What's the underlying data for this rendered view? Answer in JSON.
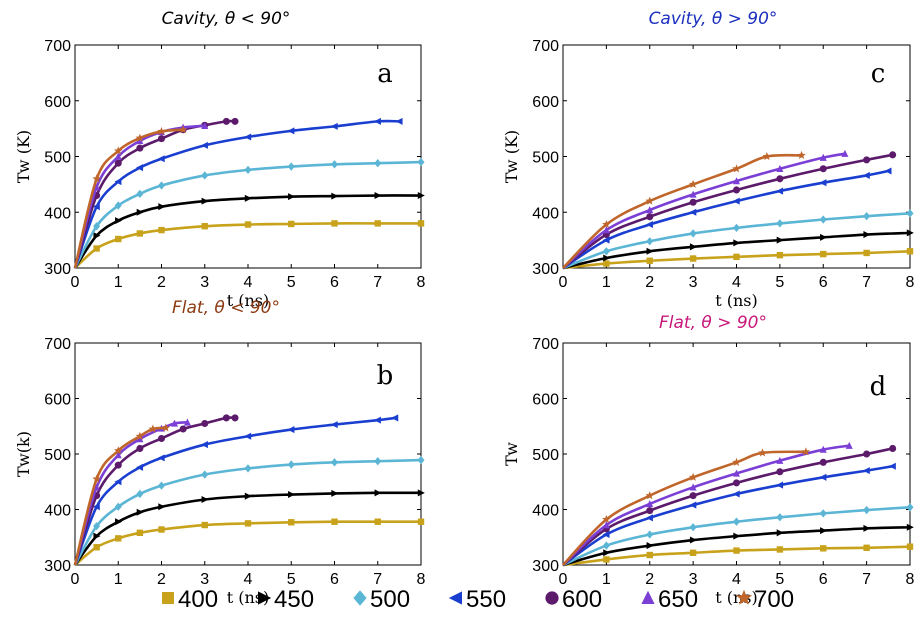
{
  "chart_data": [
    {
      "type": "line",
      "panel": "a",
      "title": "Cavity, θ < 90°",
      "title_color": "#000000",
      "xlabel": "t (ns)",
      "ylabel": "Tw (K)",
      "xlim": [
        0,
        8
      ],
      "ylim": [
        300,
        700
      ],
      "xticks": [
        "0",
        "1",
        "2",
        "3",
        "4",
        "5",
        "6",
        "7",
        "8"
      ],
      "yticks": [
        "300",
        "400",
        "500",
        "600",
        "700"
      ],
      "series": [
        {
          "name": "400",
          "color": "#c8a21a",
          "marker": "square",
          "x": [
            0,
            0.5,
            1,
            1.5,
            2,
            3,
            4,
            5,
            6,
            7,
            8
          ],
          "y": [
            300,
            335,
            352,
            362,
            368,
            375,
            378,
            379,
            380,
            380,
            380
          ]
        },
        {
          "name": "450",
          "color": "#000000",
          "marker": "triangle-right",
          "x": [
            0,
            0.5,
            1,
            1.5,
            2,
            3,
            4,
            5,
            6,
            7,
            8
          ],
          "y": [
            300,
            358,
            385,
            400,
            410,
            420,
            425,
            428,
            429,
            430,
            430
          ]
        },
        {
          "name": "500",
          "color": "#5bb5d5",
          "marker": "diamond",
          "x": [
            0,
            0.5,
            1,
            1.5,
            2,
            3,
            4,
            5,
            6,
            7,
            8
          ],
          "y": [
            300,
            375,
            412,
            433,
            448,
            466,
            476,
            482,
            486,
            488,
            490
          ]
        },
        {
          "name": "550",
          "color": "#1a3fd0",
          "marker": "triangle-left",
          "x": [
            0,
            0.5,
            1,
            1.5,
            2,
            3,
            4,
            5,
            6,
            7,
            7.5
          ],
          "y": [
            300,
            410,
            455,
            480,
            496,
            520,
            535,
            546,
            554,
            563,
            563
          ]
        },
        {
          "name": "600",
          "color": "#5c1a6b",
          "marker": "circle",
          "x": [
            0,
            0.5,
            1,
            1.5,
            2,
            2.5,
            3,
            3.5,
            3.7
          ],
          "y": [
            300,
            430,
            488,
            515,
            532,
            548,
            556,
            563,
            563
          ]
        },
        {
          "name": "650",
          "color": "#7b3fd6",
          "marker": "triangle-up",
          "x": [
            0,
            0.5,
            1,
            1.5,
            2,
            2.5,
            3
          ],
          "y": [
            300,
            445,
            500,
            528,
            544,
            552,
            555
          ]
        },
        {
          "name": "700",
          "color": "#c0662b",
          "marker": "star",
          "x": [
            0,
            0.5,
            1,
            1.5,
            2,
            2.5
          ],
          "y": [
            300,
            460,
            510,
            533,
            545,
            548
          ]
        }
      ]
    },
    {
      "type": "line",
      "panel": "b",
      "title": "Flat, θ < 90°",
      "title_color": "#8b3a12",
      "xlabel": "t (ns)",
      "ylabel": "Tw(k)",
      "xlim": [
        0,
        8
      ],
      "ylim": [
        300,
        700
      ],
      "xticks": [
        "0",
        "1",
        "2",
        "3",
        "4",
        "5",
        "6",
        "7",
        "8"
      ],
      "yticks": [
        "300",
        "400",
        "500",
        "600",
        "700"
      ],
      "series": [
        {
          "name": "400",
          "color": "#c8a21a",
          "marker": "square",
          "x": [
            0,
            0.5,
            1,
            1.5,
            2,
            3,
            4,
            5,
            6,
            7,
            8
          ],
          "y": [
            300,
            332,
            348,
            358,
            364,
            372,
            375,
            377,
            378,
            378,
            378
          ]
        },
        {
          "name": "450",
          "color": "#000000",
          "marker": "triangle-right",
          "x": [
            0,
            0.5,
            1,
            1.5,
            2,
            3,
            4,
            5,
            6,
            7,
            8
          ],
          "y": [
            300,
            352,
            378,
            395,
            405,
            418,
            424,
            427,
            429,
            430,
            430
          ]
        },
        {
          "name": "500",
          "color": "#5bb5d5",
          "marker": "diamond",
          "x": [
            0,
            0.5,
            1,
            1.5,
            2,
            3,
            4,
            5,
            6,
            7,
            8
          ],
          "y": [
            300,
            370,
            405,
            428,
            443,
            463,
            474,
            481,
            485,
            487,
            489
          ]
        },
        {
          "name": "550",
          "color": "#1a3fd0",
          "marker": "triangle-left",
          "x": [
            0,
            0.5,
            1,
            1.5,
            2,
            3,
            4,
            5,
            6,
            7,
            7.4
          ],
          "y": [
            300,
            405,
            450,
            476,
            493,
            517,
            532,
            544,
            553,
            561,
            565
          ]
        },
        {
          "name": "600",
          "color": "#5c1a6b",
          "marker": "circle",
          "x": [
            0,
            0.5,
            1,
            1.5,
            2,
            2.5,
            3,
            3.5,
            3.7
          ],
          "y": [
            300,
            425,
            480,
            510,
            528,
            545,
            555,
            565,
            565
          ]
        },
        {
          "name": "650",
          "color": "#7b3fd6",
          "marker": "triangle-up",
          "x": [
            0,
            0.5,
            1,
            1.5,
            2,
            2.3,
            2.6
          ],
          "y": [
            300,
            440,
            498,
            527,
            546,
            555,
            557
          ]
        },
        {
          "name": "700",
          "color": "#c0662b",
          "marker": "star",
          "x": [
            0,
            0.5,
            1,
            1.5,
            1.8,
            2.1
          ],
          "y": [
            300,
            455,
            506,
            532,
            545,
            547
          ]
        }
      ]
    },
    {
      "type": "line",
      "panel": "c",
      "title": "Cavity, θ > 90°",
      "title_color": "#1a2fbf",
      "xlabel": "t (ns)",
      "ylabel": "Tw (K)",
      "xlim": [
        0,
        8
      ],
      "ylim": [
        300,
        700
      ],
      "xticks": [
        "0",
        "1",
        "2",
        "3",
        "4",
        "5",
        "6",
        "7",
        "8"
      ],
      "yticks": [
        "300",
        "400",
        "500",
        "600",
        "700"
      ],
      "series": [
        {
          "name": "400",
          "color": "#c8a21a",
          "marker": "square",
          "x": [
            0,
            1,
            2,
            3,
            4,
            5,
            6,
            7,
            8
          ],
          "y": [
            300,
            308,
            313,
            317,
            320,
            323,
            325,
            327,
            330
          ]
        },
        {
          "name": "450",
          "color": "#000000",
          "marker": "triangle-right",
          "x": [
            0,
            1,
            2,
            3,
            4,
            5,
            6,
            7,
            8
          ],
          "y": [
            300,
            318,
            330,
            338,
            345,
            350,
            355,
            360,
            363
          ]
        },
        {
          "name": "500",
          "color": "#5bb5d5",
          "marker": "diamond",
          "x": [
            0,
            1,
            2,
            3,
            4,
            5,
            6,
            7,
            8
          ],
          "y": [
            300,
            330,
            348,
            362,
            372,
            380,
            387,
            393,
            398
          ]
        },
        {
          "name": "550",
          "color": "#1a3fd0",
          "marker": "triangle-left",
          "x": [
            0,
            1,
            2,
            3,
            4,
            5,
            6,
            7,
            7.5
          ],
          "y": [
            300,
            350,
            378,
            400,
            420,
            438,
            453,
            466,
            474
          ]
        },
        {
          "name": "600",
          "color": "#5c1a6b",
          "marker": "circle",
          "x": [
            0,
            1,
            2,
            3,
            4,
            5,
            6,
            7,
            7.6
          ],
          "y": [
            300,
            360,
            392,
            418,
            440,
            460,
            478,
            494,
            503
          ]
        },
        {
          "name": "650",
          "color": "#7b3fd6",
          "marker": "triangle-up",
          "x": [
            0,
            1,
            2,
            3,
            4,
            5,
            6,
            6.5
          ],
          "y": [
            300,
            368,
            404,
            432,
            456,
            478,
            498,
            505
          ]
        },
        {
          "name": "700",
          "color": "#c0662b",
          "marker": "star",
          "x": [
            0,
            1,
            2,
            3,
            4,
            4.7,
            5.5
          ],
          "y": [
            300,
            378,
            420,
            450,
            478,
            500,
            502
          ]
        }
      ]
    },
    {
      "type": "line",
      "panel": "d",
      "title": "Flat, θ > 90°",
      "title_color": "#c8187a",
      "xlabel": "t (ns)",
      "ylabel": "Tw",
      "xlim": [
        0,
        8
      ],
      "ylim": [
        300,
        700
      ],
      "xticks": [
        "0",
        "1",
        "2",
        "3",
        "4",
        "5",
        "6",
        "7",
        "8"
      ],
      "yticks": [
        "300",
        "400",
        "500",
        "600",
        "700"
      ],
      "series": [
        {
          "name": "400",
          "color": "#c8a21a",
          "marker": "square",
          "x": [
            0,
            1,
            2,
            3,
            4,
            5,
            6,
            7,
            8
          ],
          "y": [
            300,
            310,
            318,
            322,
            326,
            328,
            330,
            331,
            333
          ]
        },
        {
          "name": "450",
          "color": "#000000",
          "marker": "triangle-right",
          "x": [
            0,
            1,
            2,
            3,
            4,
            5,
            6,
            7,
            8
          ],
          "y": [
            300,
            322,
            335,
            345,
            352,
            358,
            362,
            366,
            368
          ]
        },
        {
          "name": "500",
          "color": "#5bb5d5",
          "marker": "diamond",
          "x": [
            0,
            1,
            2,
            3,
            4,
            5,
            6,
            7,
            8
          ],
          "y": [
            300,
            335,
            355,
            368,
            378,
            386,
            393,
            399,
            404
          ]
        },
        {
          "name": "550",
          "color": "#1a3fd0",
          "marker": "triangle-left",
          "x": [
            0,
            1,
            2,
            3,
            4,
            5,
            6,
            7,
            7.6
          ],
          "y": [
            300,
            355,
            385,
            408,
            428,
            444,
            458,
            470,
            478
          ]
        },
        {
          "name": "600",
          "color": "#5c1a6b",
          "marker": "circle",
          "x": [
            0,
            1,
            2,
            3,
            4,
            5,
            6,
            7,
            7.6
          ],
          "y": [
            300,
            365,
            398,
            425,
            448,
            468,
            485,
            500,
            510
          ]
        },
        {
          "name": "650",
          "color": "#7b3fd6",
          "marker": "triangle-up",
          "x": [
            0,
            1,
            2,
            3,
            4,
            5,
            6,
            6.6
          ],
          "y": [
            300,
            372,
            410,
            440,
            465,
            488,
            508,
            515
          ]
        },
        {
          "name": "700",
          "color": "#c0662b",
          "marker": "star",
          "x": [
            0,
            1,
            2,
            3,
            4,
            4.6,
            5.6
          ],
          "y": [
            300,
            382,
            425,
            458,
            485,
            502,
            504
          ]
        }
      ]
    }
  ],
  "legend": {
    "placement": "bottom",
    "entries": [
      {
        "label": "400",
        "color": "#c8a21a",
        "marker": "square"
      },
      {
        "label": "450",
        "color": "#000000",
        "marker": "triangle-right"
      },
      {
        "label": "500",
        "color": "#5bb5d5",
        "marker": "diamond"
      },
      {
        "label": "550",
        "color": "#1a3fd0",
        "marker": "triangle-left"
      },
      {
        "label": "600",
        "color": "#5c1a6b",
        "marker": "circle"
      },
      {
        "label": "650",
        "color": "#7b3fd6",
        "marker": "triangle-up"
      },
      {
        "label": "700",
        "color": "#c0662b",
        "marker": "star"
      }
    ]
  }
}
